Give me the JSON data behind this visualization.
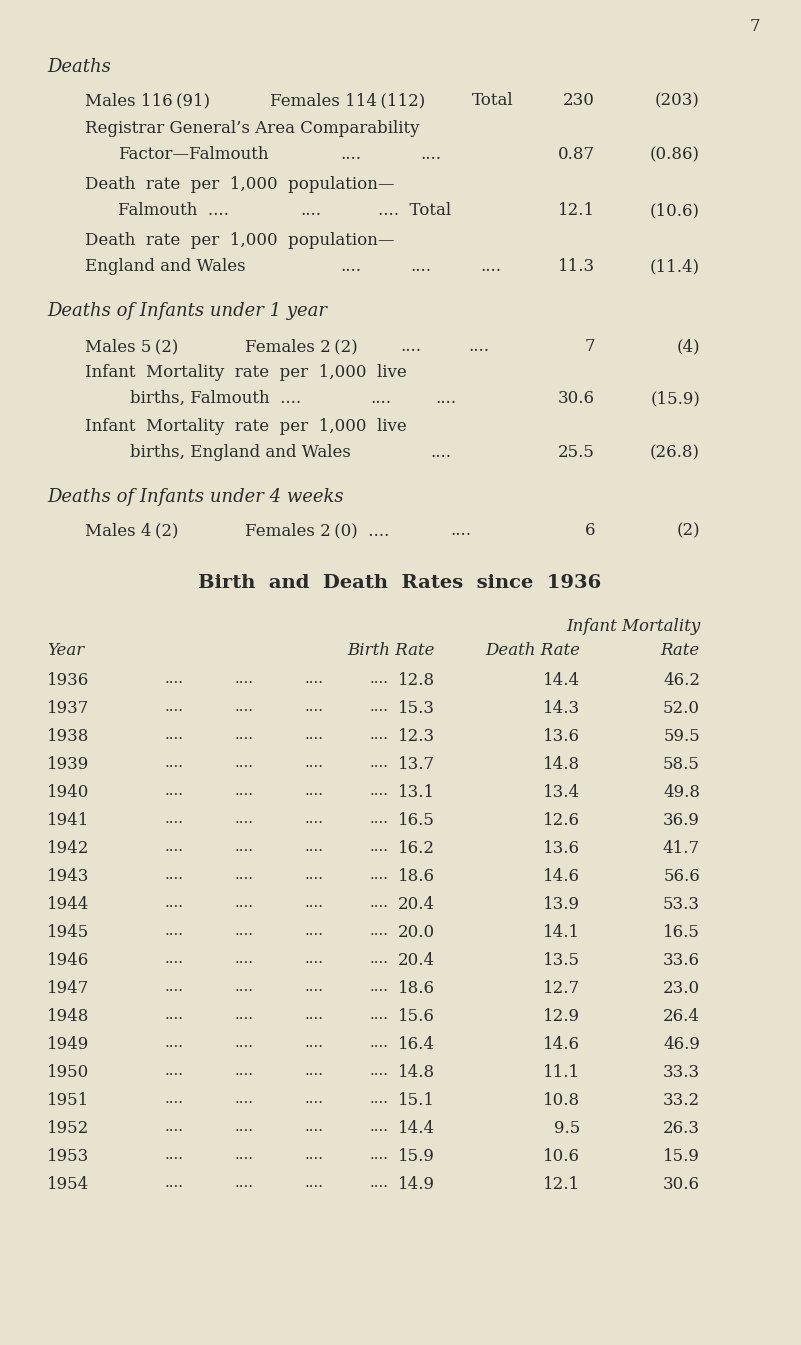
{
  "bg_color": "#e8e3cf",
  "text_color": "#2a2a2a",
  "page_number": "7",
  "section1_header": "Deaths",
  "section2_header": "Deaths of Infants under 1 year",
  "section3_header": "Deaths of Infants under 4 weeks",
  "table_title": "Birth  and  Death  Rates  since  1936",
  "table_col_header_line1": "Infant Mortality",
  "table_col_header_year": "Year",
  "table_col_header_birth": "Birth Rate",
  "table_col_header_death": "Death Rate",
  "table_col_header_infant": "Rate",
  "table_data": [
    [
      "1936",
      "12.8",
      "14.4",
      "46.2"
    ],
    [
      "1937",
      "15.3",
      "14.3",
      "52.0"
    ],
    [
      "1938",
      "12.3",
      "13.6",
      "59.5"
    ],
    [
      "1939",
      "13.7",
      "14.8",
      "58.5"
    ],
    [
      "1940",
      "13.1",
      "13.4",
      "49.8"
    ],
    [
      "1941",
      "16.5",
      "12.6",
      "36.9"
    ],
    [
      "1942",
      "16.2",
      "13.6",
      "41.7"
    ],
    [
      "1943",
      "18.6",
      "14.6",
      "56.6"
    ],
    [
      "1944",
      "20.4",
      "13.9",
      "53.3"
    ],
    [
      "1945",
      "20.0",
      "14.1",
      "16.5"
    ],
    [
      "1946",
      "20.4",
      "13.5",
      "33.6"
    ],
    [
      "1947",
      "18.6",
      "12.7",
      "23.0"
    ],
    [
      "1948",
      "15.6",
      "12.9",
      "26.4"
    ],
    [
      "1949",
      "16.4",
      "14.6",
      "46.9"
    ],
    [
      "1950",
      "14.8",
      "11.1",
      "33.3"
    ],
    [
      "1951",
      "15.1",
      "10.8",
      "33.2"
    ],
    [
      "1952",
      "14.4",
      "9.5",
      "26.3"
    ],
    [
      "1953",
      "15.9",
      "10.6",
      "15.9"
    ],
    [
      "1954",
      "14.9",
      "12.1",
      "30.6"
    ]
  ]
}
